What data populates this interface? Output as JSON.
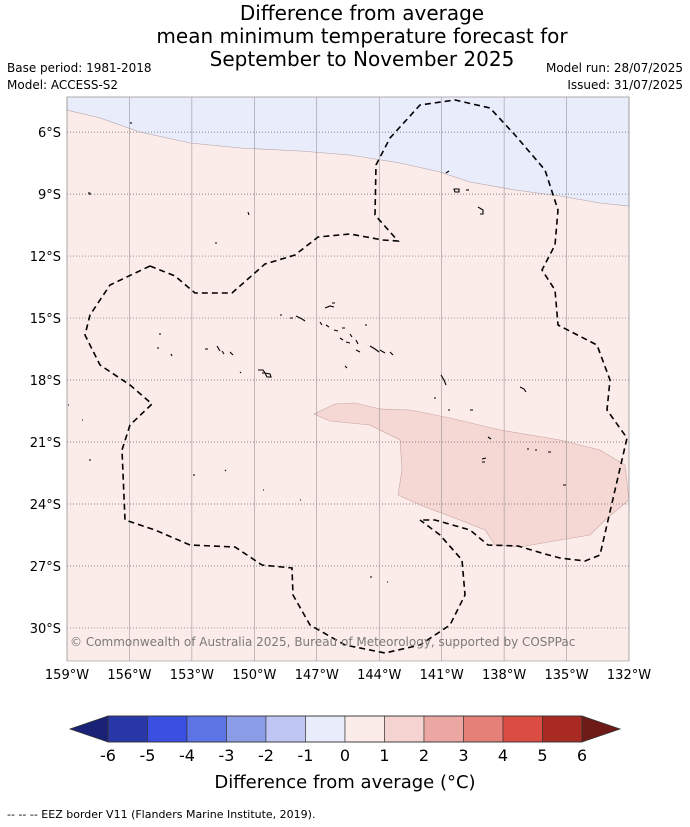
{
  "title": {
    "lines": [
      "Difference from average",
      "mean minimum temperature forecast for",
      "September to November 2025"
    ]
  },
  "meta_left": {
    "base_period": "Base period: 1981-2018",
    "model": "Model: ACCESS-S2"
  },
  "meta_right": {
    "model_run": "Model run: 28/07/2025",
    "issued": "Issued: 31/07/2025"
  },
  "map": {
    "lon_range": [
      -159,
      -132
    ],
    "lat_range": [
      -31.6,
      -4.3
    ],
    "lon_ticks": [
      {
        "value": -159,
        "label": "159°W"
      },
      {
        "value": -156,
        "label": "156°W"
      },
      {
        "value": -153,
        "label": "153°W"
      },
      {
        "value": -150,
        "label": "150°W"
      },
      {
        "value": -147,
        "label": "147°W"
      },
      {
        "value": -144,
        "label": "144°W"
      },
      {
        "value": -141,
        "label": "141°W"
      },
      {
        "value": -138,
        "label": "138°W"
      },
      {
        "value": -135,
        "label": "135°W"
      },
      {
        "value": -132,
        "label": "132°W"
      }
    ],
    "lat_ticks": [
      {
        "value": -6,
        "label": "6°S"
      },
      {
        "value": -9,
        "label": "9°S"
      },
      {
        "value": -12,
        "label": "12°S"
      },
      {
        "value": -15,
        "label": "15°S"
      },
      {
        "value": -18,
        "label": "18°S"
      },
      {
        "value": -21,
        "label": "21°S"
      },
      {
        "value": -24,
        "label": "24°S"
      },
      {
        "value": -27,
        "label": "27°S"
      },
      {
        "value": -30,
        "label": "30°S"
      }
    ],
    "copyright": "© Commonwealth of Australia 2025, Bureau of Meteorology, supported by COSPPac",
    "colors": {
      "cool_band": "#e9ecfb",
      "warm_main": "#fbebe9",
      "warm_patch": "#f5d7d4",
      "grid": "#888888"
    }
  },
  "colorbar": {
    "labels": [
      "-6",
      "-5",
      "-4",
      "-3",
      "-2",
      "-1",
      "0",
      "1",
      "2",
      "3",
      "4",
      "5",
      "6"
    ],
    "colors": [
      "#2838a8",
      "#3a4fe0",
      "#5d74e4",
      "#8c9de8",
      "#c0c6f3",
      "#e9ecfb",
      "#fbebe9",
      "#f4d3d0",
      "#eda7a3",
      "#e58079",
      "#db4c43",
      "#a82a22"
    ],
    "low_extend": "#1a2278",
    "high_extend": "#6e1a16",
    "title": "Difference from average (°C)"
  },
  "footnote": "-- -- -- EEZ border V11 (Flanders Marine Institute, 2019)."
}
